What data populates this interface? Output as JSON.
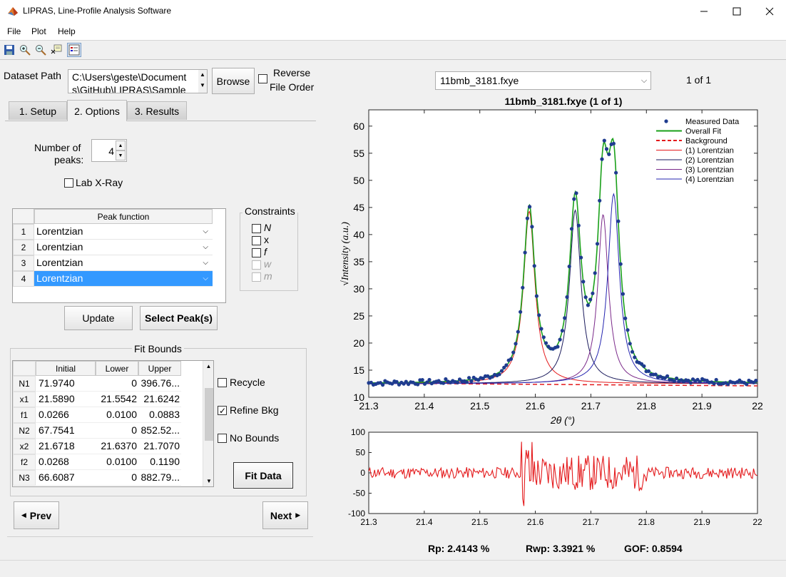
{
  "window": {
    "title": "LIPRAS, Line-Profile Analysis Software"
  },
  "menu": [
    "File",
    "Plot",
    "Help"
  ],
  "toolbar": {
    "icons": [
      "save-icon",
      "zoom-in-icon",
      "zoom-out-icon",
      "data-cursor-icon",
      "legend-icon"
    ]
  },
  "dataset": {
    "label": "Dataset Path",
    "path_line1": "C:\\Users\\geste\\Document",
    "path_line2": "s\\GitHub\\LIPRAS\\Sample",
    "browse": "Browse",
    "reverse_line1": "Reverse",
    "reverse_line2": "File Order"
  },
  "tabs": [
    "1. Setup",
    "2. Options",
    "3. Results"
  ],
  "options": {
    "num_peaks_label1": "Number of",
    "num_peaks_label2": "peaks:",
    "num_peaks": "4",
    "lab_xray": "Lab X-Ray",
    "peak_function_header": "Peak function",
    "peaks": [
      {
        "n": "1",
        "fn": "Lorentzian"
      },
      {
        "n": "2",
        "fn": "Lorentzian"
      },
      {
        "n": "3",
        "fn": "Lorentzian"
      },
      {
        "n": "4",
        "fn": "Lorentzian"
      }
    ],
    "constraints_title": "Constraints",
    "constraints": [
      "N",
      "x",
      "f",
      "w",
      "m"
    ],
    "update": "Update",
    "select_peaks": "Select Peak(s)"
  },
  "fit_bounds": {
    "title": "Fit Bounds",
    "headers": [
      "Initial",
      "Lower",
      "Upper"
    ],
    "rows": [
      {
        "p": "N1",
        "init": "71.9740",
        "lower": "0",
        "upper": "396.76..."
      },
      {
        "p": "x1",
        "init": "21.5890",
        "lower": "21.5542",
        "upper": "21.6242"
      },
      {
        "p": "f1",
        "init": "0.0266",
        "lower": "0.0100",
        "upper": "0.0883"
      },
      {
        "p": "N2",
        "init": "67.7541",
        "lower": "0",
        "upper": "852.52..."
      },
      {
        "p": "x2",
        "init": "21.6718",
        "lower": "21.6370",
        "upper": "21.7070"
      },
      {
        "p": "f2",
        "init": "0.0268",
        "lower": "0.0100",
        "upper": "0.1190"
      },
      {
        "p": "N3",
        "init": "66.6087",
        "lower": "0",
        "upper": "882.79..."
      }
    ],
    "recycle": "Recycle",
    "refine_bkg": "Refine Bkg",
    "no_bounds": "No Bounds",
    "fit_data": "Fit Data"
  },
  "nav": {
    "prev": "Prev",
    "next": "Next"
  },
  "file_select": {
    "value": "11bmb_3181.fxye",
    "counter": "1 of 1"
  },
  "stats": {
    "rp": "Rp: 2.4143 %",
    "rwp": "Rwp: 3.3921 %",
    "gof": "GOF: 0.8594"
  },
  "chart_data": [
    {
      "type": "line",
      "title": "11bmb_3181.fxye (1 of 1)",
      "xlabel": "2θ (°)",
      "ylabel": "√Intensity (a.u.)",
      "xlim": [
        21.3,
        22.0
      ],
      "ylim": [
        10,
        63
      ],
      "xticks": [
        "21.3",
        "21.4",
        "21.5",
        "21.6",
        "21.7",
        "21.8",
        "21.9",
        "22"
      ],
      "yticks": [
        "10",
        "15",
        "20",
        "25",
        "30",
        "35",
        "40",
        "45",
        "50",
        "55",
        "60"
      ],
      "legend_position": "top-right",
      "background": 12.5,
      "peaks": [
        {
          "name": "(1) Lorentzian",
          "center": 21.589,
          "height": 31.8,
          "hwhm": 0.0125,
          "color": "#e41a1c"
        },
        {
          "name": "(2) Lorentzian",
          "center": 21.6718,
          "height": 32.0,
          "hwhm": 0.0125,
          "color": "#1a1a5c"
        },
        {
          "name": "(3) Lorentzian",
          "center": 21.722,
          "height": 31.2,
          "hwhm": 0.0115,
          "color": "#7b2a8a"
        },
        {
          "name": "(4) Lorentzian",
          "center": 21.741,
          "height": 35.0,
          "hwhm": 0.0125,
          "color": "#2424b0"
        }
      ],
      "series": [
        {
          "name": "Measured Data",
          "style": "markers",
          "color": "#1f3c8f"
        },
        {
          "name": "Overall Fit",
          "style": "line",
          "color": "#1aa01a"
        },
        {
          "name": "Background",
          "style": "dashed",
          "color": "#e41a1c"
        },
        {
          "name": "(1) Lorentzian",
          "color": "#e41a1c"
        },
        {
          "name": "(2) Lorentzian",
          "color": "#1a1a5c"
        },
        {
          "name": "(3) Lorentzian",
          "color": "#7b2a8a"
        },
        {
          "name": "(4) Lorentzian",
          "color": "#2424b0"
        }
      ]
    },
    {
      "type": "line",
      "title": "",
      "xlim": [
        21.3,
        22.0
      ],
      "ylim": [
        -100,
        100
      ],
      "xticks": [
        "21.3",
        "21.4",
        "21.5",
        "21.6",
        "21.7",
        "21.8",
        "21.9",
        "22"
      ],
      "yticks": [
        "100",
        "50",
        "0",
        "-50",
        "-100"
      ],
      "series": [
        {
          "name": "",
          "color": "#e41a1c"
        }
      ]
    }
  ]
}
